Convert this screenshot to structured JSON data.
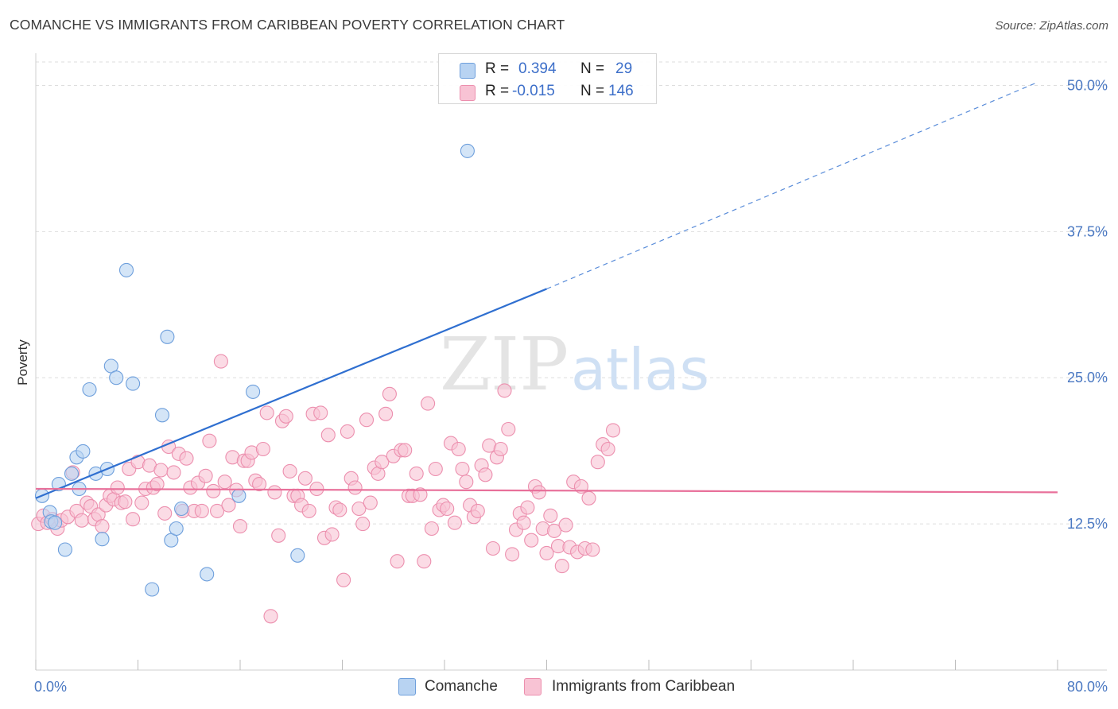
{
  "header": {
    "title": "COMANCHE VS IMMIGRANTS FROM CARIBBEAN POVERTY CORRELATION CHART",
    "source": "Source: ZipAtlas.com"
  },
  "watermark": {
    "zip": "ZIP",
    "atlas": "atlas"
  },
  "legend_stats": {
    "comanche": {
      "r_label": "R =",
      "r_value": "0.394",
      "n_label": "N =",
      "n_value": "29"
    },
    "caribbean": {
      "r_label": "R =",
      "r_value": "-0.015",
      "n_label": "N =",
      "n_value": "146"
    }
  },
  "legend_bottom": {
    "comanche": "Comanche",
    "caribbean": "Immigrants from Caribbean"
  },
  "colors": {
    "comanche_fill": "#b8d3f2",
    "comanche_stroke": "#6e9fdc",
    "comanche_line": "#2f6fd0",
    "caribbean_fill": "#f8c3d4",
    "caribbean_stroke": "#ec8fae",
    "caribbean_line": "#e8709a",
    "axis_label": "#4a78c2",
    "grid": "#dedede"
  },
  "chart_data": {
    "type": "scatter",
    "title": "COMANCHE VS IMMIGRANTS FROM CARIBBEAN POVERTY CORRELATION CHART",
    "xlabel": "",
    "ylabel": "Poverty",
    "xlim": [
      0,
      80
    ],
    "ylim": [
      0,
      53.5
    ],
    "x_tick_labels": [
      "0.0%",
      "80.0%"
    ],
    "y_ticks": [
      12.5,
      25.0,
      37.5,
      50.0
    ],
    "y_tick_labels": [
      "12.5%",
      "25.0%",
      "37.5%",
      "50.0%"
    ],
    "grid": true,
    "legend": "top-center",
    "series": [
      {
        "name": "Comanche",
        "r": 0.394,
        "n": 29,
        "trend": {
          "x0": 0,
          "y0": 14.7,
          "x1": 40,
          "y1": 32.6,
          "dashed_to_x": 78.5,
          "dashed_to_y": 50.3
        },
        "points": [
          [
            0.5,
            14.9
          ],
          [
            1.1,
            13.5
          ],
          [
            1.2,
            12.7
          ],
          [
            1.8,
            15.9
          ],
          [
            1.5,
            12.6
          ],
          [
            2.3,
            10.3
          ],
          [
            2.8,
            16.8
          ],
          [
            3.4,
            15.5
          ],
          [
            3.2,
            18.2
          ],
          [
            3.7,
            18.7
          ],
          [
            4.2,
            24.0
          ],
          [
            4.7,
            16.8
          ],
          [
            5.2,
            11.2
          ],
          [
            5.6,
            17.2
          ],
          [
            5.9,
            26.0
          ],
          [
            6.3,
            25.0
          ],
          [
            7.1,
            34.2
          ],
          [
            7.6,
            24.5
          ],
          [
            9.1,
            6.9
          ],
          [
            9.9,
            21.8
          ],
          [
            10.3,
            28.5
          ],
          [
            10.6,
            11.1
          ],
          [
            11.0,
            12.1
          ],
          [
            11.4,
            13.8
          ],
          [
            13.4,
            8.2
          ],
          [
            15.9,
            14.9
          ],
          [
            17.0,
            23.8
          ],
          [
            20.5,
            9.8
          ],
          [
            33.8,
            44.4
          ]
        ]
      },
      {
        "name": "Immigrants from Caribbean",
        "r": -0.015,
        "n": 146,
        "trend": {
          "x0": 0,
          "y0": 15.5,
          "x1": 80,
          "y1": 15.2
        },
        "points": [
          [
            0.2,
            12.5
          ],
          [
            0.6,
            13.2
          ],
          [
            0.9,
            12.6
          ],
          [
            1.3,
            12.9
          ],
          [
            1.7,
            12.1
          ],
          [
            2.0,
            12.8
          ],
          [
            2.5,
            13.1
          ],
          [
            2.9,
            16.9
          ],
          [
            3.2,
            13.6
          ],
          [
            3.6,
            12.8
          ],
          [
            4.0,
            14.3
          ],
          [
            4.3,
            14.0
          ],
          [
            4.6,
            12.9
          ],
          [
            4.9,
            13.3
          ],
          [
            5.2,
            12.3
          ],
          [
            5.5,
            14.1
          ],
          [
            5.8,
            14.9
          ],
          [
            6.1,
            14.6
          ],
          [
            6.4,
            15.6
          ],
          [
            6.7,
            14.3
          ],
          [
            7.0,
            14.4
          ],
          [
            7.3,
            17.2
          ],
          [
            7.6,
            12.9
          ],
          [
            8.0,
            17.8
          ],
          [
            8.3,
            14.3
          ],
          [
            8.6,
            15.5
          ],
          [
            8.9,
            17.5
          ],
          [
            9.2,
            15.6
          ],
          [
            9.5,
            15.9
          ],
          [
            9.8,
            17.1
          ],
          [
            10.1,
            13.4
          ],
          [
            10.4,
            19.1
          ],
          [
            10.8,
            16.9
          ],
          [
            11.2,
            18.5
          ],
          [
            11.5,
            13.6
          ],
          [
            11.8,
            18.1
          ],
          [
            12.1,
            15.6
          ],
          [
            12.4,
            13.6
          ],
          [
            12.7,
            16.0
          ],
          [
            13.0,
            13.6
          ],
          [
            13.3,
            16.6
          ],
          [
            13.6,
            19.6
          ],
          [
            13.9,
            15.3
          ],
          [
            14.2,
            13.6
          ],
          [
            14.5,
            26.4
          ],
          [
            14.8,
            16.1
          ],
          [
            15.1,
            14.1
          ],
          [
            15.4,
            18.2
          ],
          [
            15.7,
            15.4
          ],
          [
            16.0,
            12.3
          ],
          [
            16.3,
            17.9
          ],
          [
            16.6,
            17.9
          ],
          [
            16.9,
            18.6
          ],
          [
            17.2,
            16.2
          ],
          [
            17.5,
            15.9
          ],
          [
            17.8,
            18.9
          ],
          [
            18.1,
            22.0
          ],
          [
            18.4,
            4.6
          ],
          [
            18.7,
            15.2
          ],
          [
            19.0,
            11.5
          ],
          [
            19.3,
            21.3
          ],
          [
            19.6,
            21.7
          ],
          [
            19.9,
            17.0
          ],
          [
            20.2,
            14.9
          ],
          [
            20.5,
            14.9
          ],
          [
            20.8,
            14.1
          ],
          [
            21.1,
            16.4
          ],
          [
            21.4,
            13.6
          ],
          [
            21.7,
            21.9
          ],
          [
            22.0,
            15.5
          ],
          [
            22.3,
            22.0
          ],
          [
            22.6,
            11.3
          ],
          [
            22.9,
            20.1
          ],
          [
            23.2,
            11.6
          ],
          [
            23.5,
            13.9
          ],
          [
            23.8,
            13.7
          ],
          [
            24.1,
            7.7
          ],
          [
            24.4,
            20.4
          ],
          [
            24.7,
            16.4
          ],
          [
            25.0,
            15.6
          ],
          [
            25.3,
            13.8
          ],
          [
            25.6,
            12.5
          ],
          [
            25.9,
            21.4
          ],
          [
            26.2,
            14.3
          ],
          [
            26.5,
            17.3
          ],
          [
            26.8,
            16.8
          ],
          [
            27.1,
            17.8
          ],
          [
            27.4,
            21.9
          ],
          [
            27.7,
            23.6
          ],
          [
            28.0,
            18.3
          ],
          [
            28.3,
            9.3
          ],
          [
            28.6,
            18.8
          ],
          [
            28.9,
            18.8
          ],
          [
            29.2,
            14.9
          ],
          [
            29.5,
            14.9
          ],
          [
            29.8,
            16.8
          ],
          [
            30.1,
            15.0
          ],
          [
            30.4,
            9.3
          ],
          [
            30.7,
            22.8
          ],
          [
            31.0,
            12.1
          ],
          [
            31.3,
            17.2
          ],
          [
            31.6,
            13.7
          ],
          [
            31.9,
            14.1
          ],
          [
            32.2,
            13.8
          ],
          [
            32.5,
            19.4
          ],
          [
            32.8,
            12.6
          ],
          [
            33.1,
            18.9
          ],
          [
            33.4,
            17.2
          ],
          [
            33.7,
            16.1
          ],
          [
            34.0,
            14.1
          ],
          [
            34.3,
            13.1
          ],
          [
            34.6,
            13.6
          ],
          [
            34.9,
            17.5
          ],
          [
            35.2,
            16.7
          ],
          [
            35.5,
            19.2
          ],
          [
            35.8,
            10.4
          ],
          [
            36.1,
            18.2
          ],
          [
            36.4,
            18.9
          ],
          [
            36.7,
            23.9
          ],
          [
            37.0,
            20.6
          ],
          [
            37.3,
            9.9
          ],
          [
            37.6,
            12.0
          ],
          [
            37.9,
            13.4
          ],
          [
            38.2,
            12.6
          ],
          [
            38.5,
            13.9
          ],
          [
            38.8,
            11.1
          ],
          [
            39.1,
            15.7
          ],
          [
            39.4,
            15.2
          ],
          [
            39.7,
            12.1
          ],
          [
            40.0,
            10.0
          ],
          [
            40.3,
            13.2
          ],
          [
            40.6,
            11.9
          ],
          [
            40.9,
            10.6
          ],
          [
            41.2,
            8.9
          ],
          [
            41.5,
            12.4
          ],
          [
            41.8,
            10.5
          ],
          [
            42.1,
            16.1
          ],
          [
            42.4,
            10.1
          ],
          [
            42.7,
            15.7
          ],
          [
            43.0,
            10.4
          ],
          [
            43.3,
            14.7
          ],
          [
            43.6,
            10.3
          ],
          [
            44.0,
            17.8
          ],
          [
            44.4,
            19.3
          ],
          [
            44.8,
            18.9
          ],
          [
            45.2,
            20.5
          ]
        ]
      }
    ]
  }
}
